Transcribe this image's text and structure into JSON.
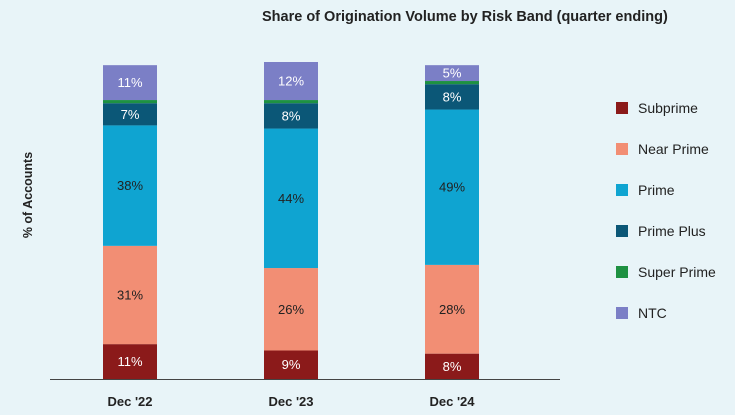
{
  "chart_data": {
    "type": "bar",
    "stacked": true,
    "title": "Share of Origination Volume by Risk Band (quarter ending)",
    "xlabel": "",
    "ylabel": "% of Accounts",
    "ylim": [
      0,
      100
    ],
    "grid": false,
    "legend_position": "right",
    "categories": [
      "Dec '22",
      "Dec '23",
      "Dec '24"
    ],
    "series": [
      {
        "name": "Subprime",
        "color": "#8b1a1a",
        "values": [
          11,
          9,
          8
        ],
        "labels": [
          "11%",
          "9%",
          "8%"
        ]
      },
      {
        "name": "Near Prime",
        "color": "#f28e74",
        "values": [
          31,
          26,
          28
        ],
        "labels": [
          "31%",
          "26%",
          "28%"
        ]
      },
      {
        "name": "Prime",
        "color": "#0fa4d1",
        "values": [
          38,
          44,
          49
        ],
        "labels": [
          "38%",
          "44%",
          "49%"
        ]
      },
      {
        "name": "Prime Plus",
        "color": "#0b5777",
        "values": [
          7,
          8,
          8
        ],
        "labels": [
          "7%",
          "8%",
          "8%"
        ]
      },
      {
        "name": "Super Prime",
        "color": "#1e9142",
        "values": [
          1,
          1,
          1
        ],
        "labels": [
          "",
          "",
          ""
        ]
      },
      {
        "name": "NTC",
        "color": "#7b7fc6",
        "values": [
          11,
          12,
          5
        ],
        "labels": [
          "11%",
          "12%",
          "5%"
        ]
      }
    ]
  }
}
